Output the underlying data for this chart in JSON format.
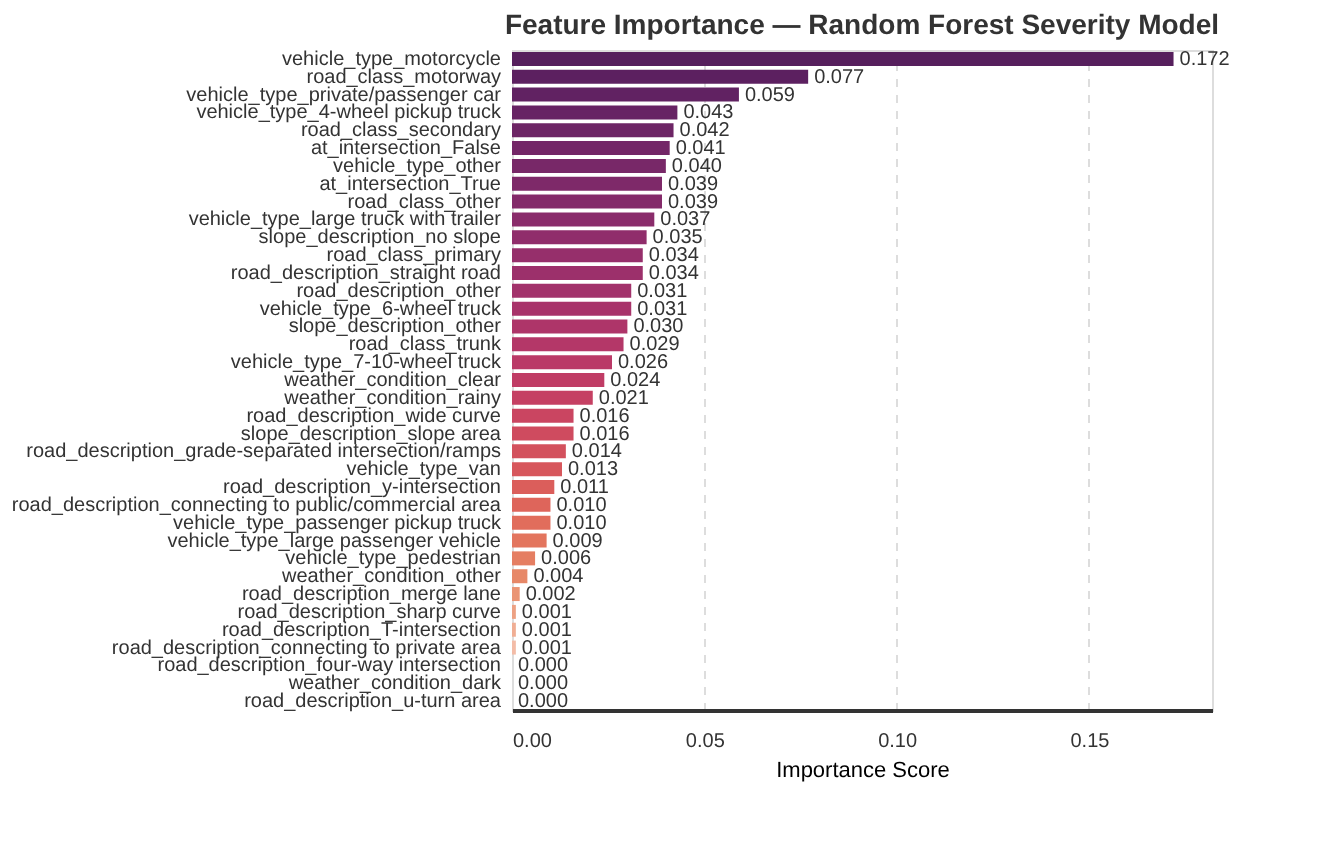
{
  "chart_data": {
    "type": "bar",
    "orientation": "horizontal",
    "title": "Feature Importance — Random Forest Severity Model",
    "xlabel": "Importance Score",
    "categories": [
      "vehicle_type_motorcycle",
      "road_class_motorway",
      "vehicle_type_private/passenger car",
      "vehicle_type_4-wheel pickup truck",
      "road_class_secondary",
      "at_intersection_False",
      "vehicle_type_other",
      "at_intersection_True",
      "road_class_other",
      "vehicle_type_large truck with trailer",
      "slope_description_no slope",
      "road_class_primary",
      "road_description_straight road",
      "road_description_other",
      "vehicle_type_6-wheel truck",
      "slope_description_other",
      "road_class_trunk",
      "vehicle_type_7-10-wheel truck",
      "weather_condition_clear",
      "weather_condition_rainy",
      "road_description_wide curve",
      "slope_description_slope area",
      "road_description_grade-separated intersection/ramps",
      "vehicle_type_van",
      "road_description_y-intersection",
      "road_description_connecting to public/commercial area",
      "vehicle_type_passenger pickup truck",
      "vehicle_type_large passenger vehicle",
      "vehicle_type_pedestrian",
      "weather_condition_other",
      "road_description_merge lane",
      "road_description_sharp curve",
      "road_description_T-intersection",
      "road_description_connecting to private area",
      "road_description_four-way intersection",
      "weather_condition_dark",
      "road_description_u-turn area"
    ],
    "values": [
      0.172,
      0.077,
      0.059,
      0.043,
      0.042,
      0.041,
      0.04,
      0.039,
      0.039,
      0.037,
      0.035,
      0.034,
      0.034,
      0.031,
      0.031,
      0.03,
      0.029,
      0.026,
      0.024,
      0.021,
      0.016,
      0.016,
      0.014,
      0.013,
      0.011,
      0.01,
      0.01,
      0.009,
      0.006,
      0.004,
      0.002,
      0.001,
      0.001,
      0.001,
      0.0,
      0.0,
      0.0
    ],
    "colors": [
      "#561f5d",
      "#5c2060",
      "#612262",
      "#672364",
      "#6d2565",
      "#732667",
      "#782868",
      "#7e2969",
      "#842a6a",
      "#8a2c6b",
      "#902d6b",
      "#962f6b",
      "#9c306b",
      "#a2326b",
      "#a8336a",
      "#ae3569",
      "#b43768",
      "#ba3967",
      "#c03c65",
      "#c54063",
      "#ca4561",
      "#cf4b5f",
      "#d3515d",
      "#d7575c",
      "#db5e5b",
      "#de655b",
      "#e16d5c",
      "#e3755e",
      "#e57e62",
      "#e78868",
      "#ea9474",
      "#eda183",
      "#f0ae94",
      "#f3bca7",
      "#f6cabb",
      "#f8d8cf",
      "#fae6e2"
    ],
    "xlim": [
      0,
      0.182
    ],
    "xticks": [
      {
        "value": 0,
        "label": "0.00"
      },
      {
        "value": 0.05,
        "label": "0.05"
      },
      {
        "value": 0.1,
        "label": "0.10"
      },
      {
        "value": 0.15,
        "label": "0.15"
      }
    ],
    "value_labels": [
      "0.172",
      "0.077",
      "0.059",
      "0.043",
      "0.042",
      "0.041",
      "0.040",
      "0.039",
      "0.039",
      "0.037",
      "0.035",
      "0.034",
      "0.034",
      "0.031",
      "0.031",
      "0.030",
      "0.029",
      "0.026",
      "0.024",
      "0.021",
      "0.016",
      "0.016",
      "0.014",
      "0.013",
      "0.011",
      "0.010",
      "0.010",
      "0.009",
      "0.006",
      "0.004",
      "0.002",
      "0.001",
      "0.001",
      "0.001",
      "0.000",
      "0.000",
      "0.000"
    ],
    "grid": "x"
  }
}
